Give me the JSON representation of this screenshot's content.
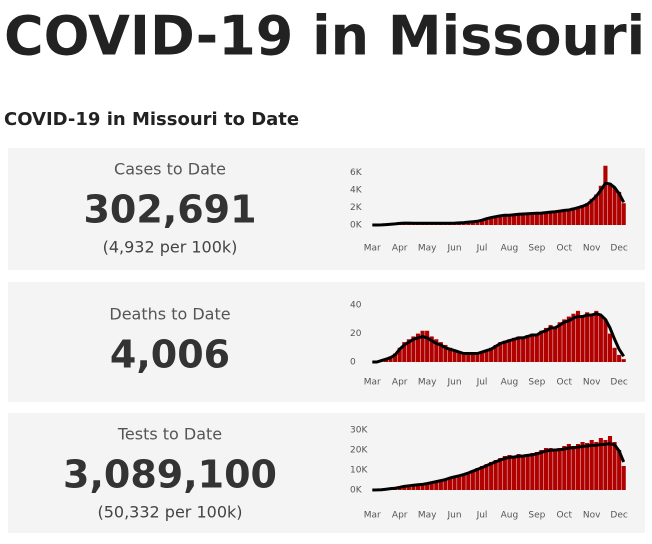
{
  "header": {
    "title": "COVID-19 in Missouri",
    "subtitle": "COVID-19 in Missouri to Date"
  },
  "cards": [
    {
      "label": "Cases to Date",
      "value": "302,691",
      "per_capita": "(4,932 per 100k)"
    },
    {
      "label": "Deaths to Date",
      "value": "4,006"
    },
    {
      "label": "Tests to Date",
      "value": "3,089,100",
      "per_capita": "(50,332 per 100k)"
    }
  ],
  "chart_data": [
    {
      "type": "bar",
      "color": "#b00000",
      "line_color": "#000000",
      "categories": [
        "Mar",
        null,
        null,
        null,
        null,
        null,
        "Apr",
        null,
        null,
        null,
        null,
        null,
        "May",
        null,
        null,
        null,
        null,
        null,
        "Jun",
        null,
        null,
        null,
        null,
        null,
        "Jul",
        null,
        null,
        null,
        null,
        null,
        "Aug",
        null,
        null,
        null,
        null,
        null,
        "Sep",
        null,
        null,
        null,
        null,
        null,
        "Oct",
        null,
        null,
        null,
        null,
        null,
        "Nov",
        null,
        null,
        null,
        null,
        null,
        "Dec",
        null
      ],
      "values": [
        0,
        5,
        20,
        60,
        100,
        150,
        200,
        250,
        230,
        200,
        210,
        190,
        180,
        200,
        220,
        200,
        190,
        210,
        220,
        250,
        300,
        350,
        400,
        450,
        600,
        800,
        900,
        1000,
        1100,
        1200,
        1100,
        1200,
        1300,
        1250,
        1300,
        1350,
        1400,
        1300,
        1500,
        1600,
        1500,
        1700,
        1800,
        1700,
        2000,
        2100,
        2300,
        2500,
        3000,
        3500,
        4500,
        6800,
        4800,
        4300,
        3800,
        2500
      ],
      "average": [
        0,
        5,
        15,
        50,
        90,
        130,
        180,
        220,
        220,
        210,
        200,
        195,
        190,
        195,
        205,
        205,
        200,
        205,
        215,
        240,
        280,
        330,
        380,
        430,
        550,
        720,
        850,
        950,
        1050,
        1120,
        1130,
        1170,
        1230,
        1260,
        1290,
        1320,
        1350,
        1370,
        1420,
        1480,
        1530,
        1600,
        1680,
        1720,
        1850,
        1980,
        2150,
        2350,
        2800,
        3300,
        4000,
        4800,
        4700,
        4300,
        3600,
        2600
      ],
      "ylim": [
        0,
        7000
      ],
      "yticks": [
        {
          "value": 0,
          "label": "0K"
        },
        {
          "value": 2000,
          "label": "2K"
        },
        {
          "value": 4000,
          "label": "4K"
        },
        {
          "value": 6000,
          "label": "6K"
        }
      ]
    },
    {
      "type": "bar",
      "color": "#b00000",
      "line_color": "#000000",
      "categories": [
        "Mar",
        null,
        null,
        null,
        null,
        null,
        "Apr",
        null,
        null,
        null,
        null,
        null,
        "May",
        null,
        null,
        null,
        null,
        null,
        "Jun",
        null,
        null,
        null,
        null,
        null,
        "Jul",
        null,
        null,
        null,
        null,
        null,
        "Aug",
        null,
        null,
        null,
        null,
        null,
        "Sep",
        null,
        null,
        null,
        null,
        null,
        "Oct",
        null,
        null,
        null,
        null,
        null,
        "Nov",
        null,
        null,
        null,
        null,
        null,
        "Dec",
        null
      ],
      "values": [
        0,
        0,
        1,
        2,
        4,
        6,
        10,
        14,
        16,
        18,
        20,
        22,
        22,
        18,
        16,
        14,
        12,
        10,
        8,
        7,
        6,
        6,
        5,
        6,
        7,
        8,
        10,
        12,
        14,
        15,
        16,
        17,
        18,
        18,
        19,
        20,
        20,
        22,
        24,
        26,
        25,
        28,
        30,
        32,
        34,
        36,
        33,
        35,
        34,
        36,
        33,
        30,
        20,
        10,
        5,
        2
      ],
      "average": [
        0,
        0,
        1,
        2,
        3,
        5,
        9,
        12,
        14,
        16,
        17,
        18,
        17,
        15,
        13,
        12,
        10,
        9,
        8,
        7,
        6,
        6,
        6,
        6,
        7,
        8,
        9,
        11,
        13,
        14,
        15,
        16,
        17,
        17,
        18,
        19,
        19,
        21,
        22,
        24,
        24,
        26,
        28,
        29,
        31,
        32,
        32,
        33,
        33,
        34,
        33,
        30,
        24,
        16,
        9,
        4
      ],
      "ylim": [
        0,
        50
      ],
      "yticks": [
        0,
        20,
        40
      ]
    },
    {
      "type": "bar",
      "color": "#b00000",
      "line_color": "#000000",
      "categories": [
        "Mar",
        null,
        null,
        null,
        null,
        null,
        "Apr",
        null,
        null,
        null,
        null,
        null,
        "May",
        null,
        null,
        null,
        null,
        null,
        "Jun",
        null,
        null,
        null,
        null,
        null,
        "Jul",
        null,
        null,
        null,
        null,
        null,
        "Aug",
        null,
        null,
        null,
        null,
        null,
        "Sep",
        null,
        null,
        null,
        null,
        null,
        "Oct",
        null,
        null,
        null,
        null,
        null,
        "Nov",
        null,
        null,
        null,
        null,
        null,
        "Dec",
        null
      ],
      "values": [
        0,
        50,
        200,
        500,
        800,
        1000,
        1500,
        2000,
        2200,
        2500,
        2800,
        3000,
        3500,
        4000,
        4500,
        5000,
        5500,
        6500,
        7000,
        7500,
        8000,
        9000,
        10000,
        11000,
        12000,
        13000,
        14000,
        15000,
        16000,
        17000,
        17500,
        17000,
        18000,
        17500,
        18000,
        18500,
        19000,
        20000,
        21000,
        21000,
        20500,
        21000,
        22000,
        23000,
        22000,
        23000,
        24000,
        23500,
        25000,
        24000,
        26000,
        25000,
        27000,
        24000,
        20000,
        12000
      ],
      "average": [
        0,
        40,
        150,
        400,
        700,
        900,
        1300,
        1800,
        2100,
        2400,
        2600,
        2800,
        3200,
        3700,
        4200,
        4700,
        5200,
        6000,
        6600,
        7100,
        7700,
        8500,
        9400,
        10300,
        11200,
        12200,
        13200,
        14100,
        15000,
        15800,
        16300,
        16500,
        16800,
        17000,
        17300,
        17600,
        18100,
        18800,
        19500,
        19900,
        20000,
        20100,
        20500,
        21000,
        21100,
        21400,
        21800,
        22000,
        22300,
        22400,
        22700,
        22900,
        23100,
        22600,
        19500,
        14000
      ],
      "ylim": [
        0,
        35000
      ],
      "yticks": [
        {
          "value": 0,
          "label": "0K"
        },
        {
          "value": 10000,
          "label": "10K"
        },
        {
          "value": 20000,
          "label": "20K"
        },
        {
          "value": 30000,
          "label": "30K"
        }
      ]
    }
  ]
}
